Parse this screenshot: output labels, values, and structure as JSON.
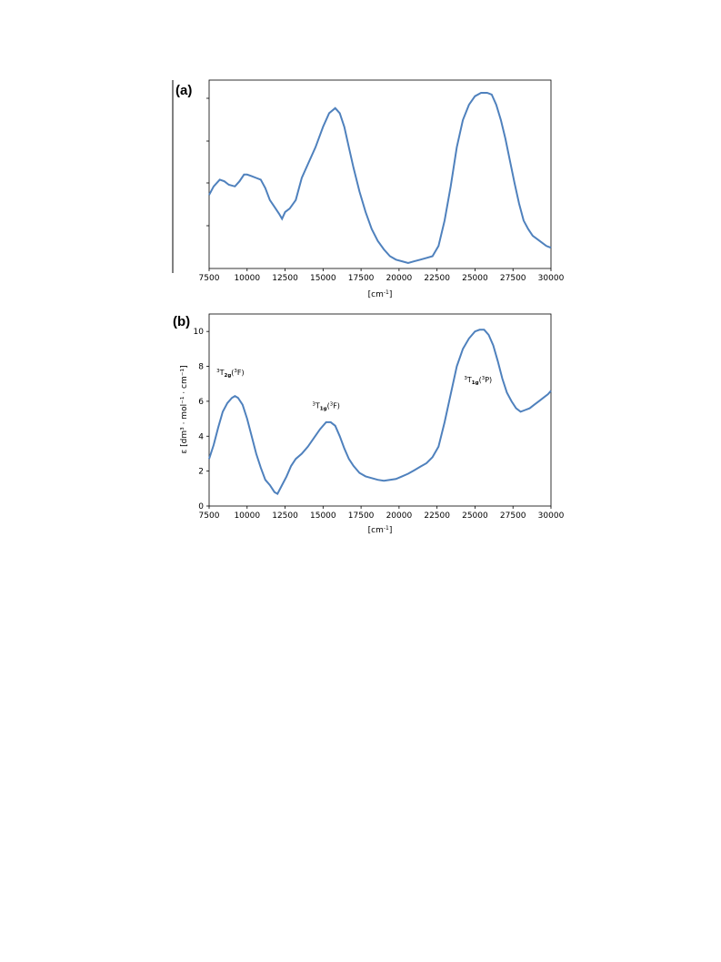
{
  "chart_data": [
    {
      "type": "line",
      "panel_label": "(a)",
      "xlabel": "[cm",
      "xlabel_sup": "-1",
      "xlabel_end": "]",
      "ylabel": "",
      "xlim": [
        7500,
        30000
      ],
      "ylim": [
        0,
        1
      ],
      "x_ticks": [
        "7500",
        "10000",
        "12500",
        "15000",
        "17500",
        "20000",
        "22500",
        "25000",
        "27500",
        "30000"
      ],
      "y_ticks": [],
      "grid": false,
      "color": "#4f81bd",
      "series": [
        {
          "x": [
            7500,
            7800,
            8200,
            8500,
            8800,
            9200,
            9500,
            9800,
            10000,
            10300,
            10600,
            10900,
            11200,
            11500,
            11800,
            12100,
            12300,
            12500,
            12800,
            13200,
            13600,
            14000,
            14500,
            15000,
            15400,
            15800,
            16100,
            16400,
            16700,
            17000,
            17400,
            17800,
            18200,
            18600,
            19000,
            19400,
            19800,
            20200,
            20600,
            21000,
            21400,
            21800,
            22200,
            22600,
            23000,
            23400,
            23800,
            24200,
            24600,
            25000,
            25400,
            25800,
            26100,
            26400,
            26700,
            27000,
            27300,
            27600,
            27900,
            28200,
            28500,
            28800,
            29100,
            29400,
            29700,
            30000
          ],
          "y": [
            0.4,
            0.45,
            0.49,
            0.48,
            0.46,
            0.45,
            0.48,
            0.52,
            0.52,
            0.51,
            0.5,
            0.49,
            0.44,
            0.37,
            0.33,
            0.29,
            0.26,
            0.3,
            0.32,
            0.37,
            0.5,
            0.58,
            0.68,
            0.8,
            0.88,
            0.91,
            0.88,
            0.8,
            0.68,
            0.56,
            0.42,
            0.3,
            0.2,
            0.13,
            0.08,
            0.04,
            0.02,
            0.01,
            0.0,
            0.01,
            0.02,
            0.03,
            0.04,
            0.1,
            0.25,
            0.45,
            0.68,
            0.84,
            0.93,
            0.98,
            1.0,
            1.0,
            0.99,
            0.93,
            0.84,
            0.73,
            0.6,
            0.47,
            0.35,
            0.25,
            0.2,
            0.16,
            0.14,
            0.12,
            0.1,
            0.09
          ]
        }
      ]
    },
    {
      "type": "line",
      "panel_label": "(b)",
      "ylabel": "ε [dm³ · mol⁻¹ · cm⁻¹]",
      "xlabel": "[cm",
      "xlabel_sup": "-1",
      "xlabel_end": "]",
      "xlim": [
        7500,
        30000
      ],
      "ylim": [
        0,
        11
      ],
      "x_ticks": [
        "7500",
        "10000",
        "12500",
        "15000",
        "17500",
        "20000",
        "22500",
        "25000",
        "27500",
        "30000"
      ],
      "y_ticks": [
        "0",
        "2",
        "4",
        "6",
        "8",
        "10"
      ],
      "grid": false,
      "color": "#4f81bd",
      "series": [
        {
          "x": [
            7500,
            7800,
            8100,
            8400,
            8700,
            9000,
            9200,
            9400,
            9700,
            10000,
            10300,
            10600,
            10900,
            11200,
            11500,
            11800,
            12000,
            12300,
            12600,
            12900,
            13200,
            13600,
            14000,
            14400,
            14800,
            15200,
            15500,
            15800,
            16100,
            16400,
            16700,
            17000,
            17400,
            17800,
            18200,
            18600,
            19000,
            19400,
            19800,
            20200,
            20600,
            21000,
            21400,
            21800,
            22200,
            22600,
            23000,
            23400,
            23800,
            24200,
            24600,
            25000,
            25300,
            25600,
            25900,
            26200,
            26500,
            26800,
            27100,
            27400,
            27700,
            28000,
            28300,
            28600,
            28900,
            29200,
            29500,
            29800,
            30000
          ],
          "y": [
            2.7,
            3.5,
            4.5,
            5.4,
            5.9,
            6.2,
            6.3,
            6.2,
            5.8,
            5.0,
            4.0,
            3.0,
            2.2,
            1.5,
            1.2,
            0.8,
            0.7,
            1.2,
            1.7,
            2.3,
            2.7,
            3.0,
            3.4,
            3.9,
            4.4,
            4.8,
            4.8,
            4.6,
            4.0,
            3.3,
            2.7,
            2.3,
            1.9,
            1.7,
            1.6,
            1.5,
            1.45,
            1.5,
            1.55,
            1.7,
            1.85,
            2.05,
            2.25,
            2.45,
            2.8,
            3.4,
            4.8,
            6.4,
            8.0,
            9.0,
            9.6,
            10.0,
            10.1,
            10.1,
            9.8,
            9.2,
            8.3,
            7.3,
            6.5,
            6.0,
            5.6,
            5.4,
            5.5,
            5.6,
            5.8,
            6.0,
            6.2,
            6.4,
            6.6
          ]
        }
      ],
      "annotations": [
        {
          "sup": "3",
          "main": "T",
          "sub": "2g",
          "paren_sup": "3",
          "paren": "F",
          "x": 8900,
          "y": 7.5
        },
        {
          "sup": "3",
          "main": "T",
          "sub": "1g",
          "paren_sup": "3",
          "paren": "F",
          "x": 15200,
          "y": 5.6
        },
        {
          "sup": "3",
          "main": "T",
          "sub": "1g",
          "paren_sup": "3",
          "paren": "P",
          "x": 25200,
          "y": 7.1
        }
      ]
    }
  ]
}
